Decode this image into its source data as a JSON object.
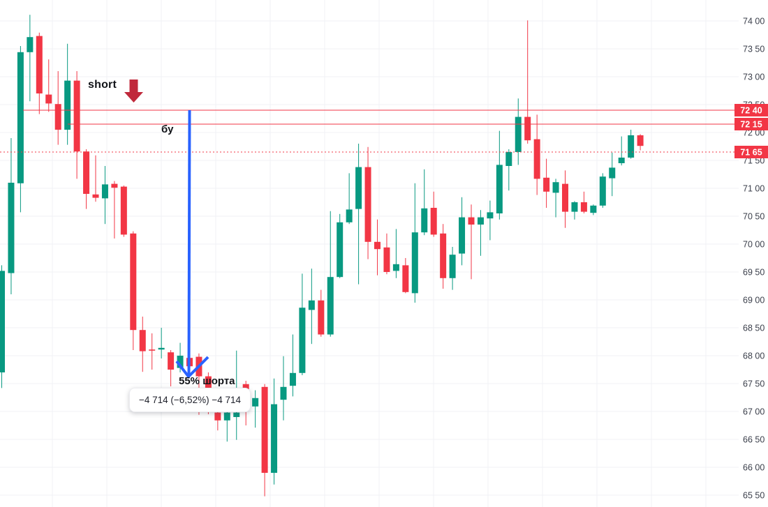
{
  "chart": {
    "background": "#ffffff",
    "grid_color": "#f0f2f5",
    "up_color": "#089981",
    "down_color": "#f23645",
    "drawing_line_color": "#f23645",
    "axis_text_color": "#3a3e4a",
    "badge_bg_color": "#f23645",
    "badge_text_color": "#ffffff",
    "blue_arrow_color": "#2962ff",
    "short_marker_color": "#c0293b"
  },
  "y_axis": {
    "labels": [
      "74 00",
      "73 50",
      "73 00",
      "72 50",
      "72 00",
      "71 50",
      "71 00",
      "70 50",
      "70 00",
      "69 50",
      "69 00",
      "68 50",
      "68 00",
      "67 50",
      "67 00",
      "66 50",
      "66 00",
      "65 50"
    ],
    "prices": [
      74.0,
      73.5,
      73.0,
      72.5,
      72.0,
      71.5,
      71.0,
      70.5,
      70.0,
      69.5,
      69.0,
      68.5,
      68.0,
      67.5,
      67.0,
      66.5,
      66.0,
      65.5
    ]
  },
  "price_lines": [
    {
      "price": 72.4,
      "label": "72 40",
      "style": "solid",
      "x_start": 33
    },
    {
      "price": 72.15,
      "label": "72 15",
      "style": "solid",
      "x_start": 97
    },
    {
      "price": 71.65,
      "label": "71 65",
      "style": "dotted",
      "x_start": 0
    }
  ],
  "annotations": {
    "short_label": "short",
    "breakeven_label": "бу",
    "shorts_percent_label": "55% шорта",
    "pnl_tooltip": "−4 714 (−6,52%) −4 714"
  },
  "chart_data": {
    "type": "candlestick",
    "title": "",
    "y_range": [
      65.5,
      74.0
    ],
    "y_step": 0.5,
    "grid": true,
    "ohlc_order": [
      "open",
      "high",
      "low",
      "close"
    ],
    "candles": [
      [
        67.7,
        69.62,
        67.42,
        69.52
      ],
      [
        69.48,
        71.9,
        69.1,
        71.1
      ],
      [
        71.09,
        73.55,
        70.57,
        73.44
      ],
      [
        73.44,
        74.11,
        72.56,
        73.71
      ],
      [
        73.73,
        73.79,
        72.33,
        72.7
      ],
      [
        72.68,
        73.31,
        72.37,
        72.52
      ],
      [
        72.51,
        73.1,
        71.78,
        72.05
      ],
      [
        72.05,
        73.59,
        71.78,
        72.93
      ],
      [
        72.93,
        73.1,
        71.17,
        71.66
      ],
      [
        71.66,
        71.7,
        70.63,
        70.9
      ],
      [
        70.89,
        71.59,
        70.76,
        70.83
      ],
      [
        70.82,
        71.4,
        70.36,
        71.07
      ],
      [
        71.08,
        71.13,
        70.1,
        71.01
      ],
      [
        71.03,
        71.05,
        70.13,
        70.17
      ],
      [
        70.19,
        70.23,
        68.1,
        68.46
      ],
      [
        68.46,
        68.7,
        67.71,
        68.08
      ],
      [
        68.11,
        68.4,
        67.75,
        68.09
      ],
      [
        68.11,
        68.5,
        67.95,
        68.14
      ],
      [
        68.06,
        68.1,
        67.45,
        67.75
      ],
      [
        67.78,
        68.23,
        67.7,
        68.0
      ],
      [
        67.96,
        68.05,
        67.74,
        67.81
      ],
      [
        67.98,
        68.04,
        66.94,
        67.63
      ],
      [
        67.63,
        67.7,
        66.95,
        67.3
      ],
      [
        66.98,
        67.1,
        66.66,
        66.84
      ],
      [
        66.84,
        67.05,
        66.46,
        66.98
      ],
      [
        66.9,
        68.09,
        66.49,
        66.98
      ],
      [
        67.49,
        67.55,
        66.75,
        67.4
      ],
      [
        67.09,
        67.38,
        66.71,
        67.24
      ],
      [
        67.44,
        67.49,
        65.48,
        65.9
      ],
      [
        65.9,
        67.59,
        65.69,
        67.13
      ],
      [
        67.21,
        67.99,
        66.84,
        67.44
      ],
      [
        67.46,
        68.38,
        67.27,
        67.69
      ],
      [
        67.69,
        69.47,
        67.65,
        68.86
      ],
      [
        68.82,
        69.56,
        68.21,
        68.99
      ],
      [
        68.99,
        69.18,
        68.34,
        68.38
      ],
      [
        68.38,
        70.59,
        68.34,
        69.41
      ],
      [
        69.41,
        70.54,
        69.39,
        70.39
      ],
      [
        70.39,
        71.27,
        70.36,
        70.62
      ],
      [
        70.63,
        71.8,
        69.28,
        71.38
      ],
      [
        71.38,
        71.74,
        69.73,
        70.04
      ],
      [
        70.04,
        70.44,
        69.44,
        69.91
      ],
      [
        69.94,
        70.19,
        69.46,
        69.5
      ],
      [
        69.52,
        70.27,
        69.39,
        69.64
      ],
      [
        69.62,
        69.75,
        69.12,
        69.14
      ],
      [
        69.12,
        71.09,
        68.95,
        70.21
      ],
      [
        70.21,
        71.34,
        70.16,
        70.64
      ],
      [
        70.65,
        70.94,
        70.13,
        70.17
      ],
      [
        70.19,
        70.36,
        69.2,
        69.39
      ],
      [
        69.39,
        69.95,
        69.18,
        69.81
      ],
      [
        69.83,
        70.84,
        69.62,
        70.48
      ],
      [
        70.48,
        70.71,
        69.37,
        70.35
      ],
      [
        70.35,
        70.61,
        69.79,
        70.48
      ],
      [
        70.46,
        70.78,
        70.07,
        70.57
      ],
      [
        70.55,
        72.03,
        70.44,
        71.42
      ],
      [
        71.4,
        71.7,
        70.96,
        71.65
      ],
      [
        71.65,
        72.61,
        71.42,
        72.28
      ],
      [
        72.28,
        74.01,
        71.8,
        71.86
      ],
      [
        71.88,
        72.32,
        70.88,
        71.17
      ],
      [
        71.19,
        71.53,
        70.65,
        70.94
      ],
      [
        70.92,
        71.17,
        70.48,
        71.11
      ],
      [
        71.08,
        71.32,
        70.29,
        70.58
      ],
      [
        70.58,
        70.77,
        70.44,
        70.75
      ],
      [
        70.75,
        70.94,
        70.55,
        70.58
      ],
      [
        70.56,
        70.71,
        70.52,
        70.69
      ],
      [
        70.69,
        71.27,
        70.65,
        71.21
      ],
      [
        71.18,
        71.64,
        70.86,
        71.37
      ],
      [
        71.45,
        71.93,
        71.41,
        71.55
      ],
      [
        71.55,
        72.05,
        71.53,
        71.95
      ],
      [
        71.95,
        71.97,
        71.68,
        71.76
      ]
    ]
  }
}
